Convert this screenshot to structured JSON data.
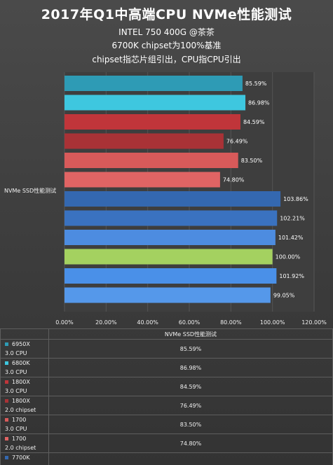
{
  "header": {
    "title": "2017年Q1中高端CPU  NVMe性能测试",
    "subtitle1": "INTEL 750 400G @茶茶",
    "subtitle2": "6700K  chipset为100%基准",
    "subtitle3": "chipset指芯片组引出，CPU指CPU引出"
  },
  "chart_data": {
    "type": "bar",
    "orientation": "horizontal",
    "ylabel": "NVMe SSD性能测试",
    "series_name": "NVMe SSD性能测试",
    "xlim": [
      0,
      120
    ],
    "x_ticks": [
      "0.00%",
      "20.00%",
      "40.00%",
      "60.00%",
      "80.00%",
      "100.00%",
      "120.00%"
    ],
    "grid": true,
    "bars": [
      {
        "cpu": "6950X",
        "port": "3.0 CPU",
        "value": 85.59,
        "label": "85.59%",
        "color": "#2e9bb5"
      },
      {
        "cpu": "6800K",
        "port": "3.0 CPU",
        "value": 86.98,
        "label": "86.98%",
        "color": "#3ec7df"
      },
      {
        "cpu": "1800X",
        "port": "3.0 CPU",
        "value": 84.59,
        "label": "84.59%",
        "color": "#c0353a"
      },
      {
        "cpu": "1800X",
        "port": "2.0 chipset",
        "value": 76.49,
        "label": "76.49%",
        "color": "#a93236"
      },
      {
        "cpu": "1700",
        "port": "3.0 CPU",
        "value": 83.5,
        "label": "83.50%",
        "color": "#d85a5a"
      },
      {
        "cpu": "1700",
        "port": "2.0 chipset",
        "value": 74.8,
        "label": "74.80%",
        "color": "#e06464"
      },
      {
        "cpu": "7700K",
        "port": "",
        "value": 103.86,
        "label": "103.86%",
        "color": "#3468b0"
      },
      {
        "cpu": "",
        "port": "",
        "value": 102.21,
        "label": "102.21%",
        "color": "#3a72c0"
      },
      {
        "cpu": "",
        "port": "",
        "value": 101.42,
        "label": "101.42%",
        "color": "#4d8ce0"
      },
      {
        "cpu": "",
        "port": "",
        "value": 100.0,
        "label": "100.00%",
        "color": "#a4d160"
      },
      {
        "cpu": "",
        "port": "",
        "value": 101.92,
        "label": "101.92%",
        "color": "#4a90e8"
      },
      {
        "cpu": "",
        "port": "",
        "value": 99.05,
        "label": "99.05%",
        "color": "#5598ea"
      }
    ]
  },
  "table": {
    "header": "NVMe SSD性能测试",
    "rows": [
      {
        "line1": "6950X",
        "line2": "3.0 CPU",
        "value": "85.59%",
        "color": "#2e9bb5"
      },
      {
        "line1": "6800K",
        "line2": "3.0 CPU",
        "value": "86.98%",
        "color": "#3ec7df"
      },
      {
        "line1": "1800X",
        "line2": "3.0 CPU",
        "value": "84.59%",
        "color": "#c0353a"
      },
      {
        "line1": "1800X",
        "line2": "2.0 chipset",
        "value": "76.49%",
        "color": "#a93236"
      },
      {
        "line1": "1700",
        "line2": "3.0 CPU",
        "value": "83.50%",
        "color": "#d85a5a"
      },
      {
        "line1": "1700",
        "line2": "2.0 chipset",
        "value": "74.80%",
        "color": "#e06464"
      },
      {
        "line1": "7700K",
        "line2": "",
        "value": "",
        "color": "#3468b0"
      }
    ]
  }
}
